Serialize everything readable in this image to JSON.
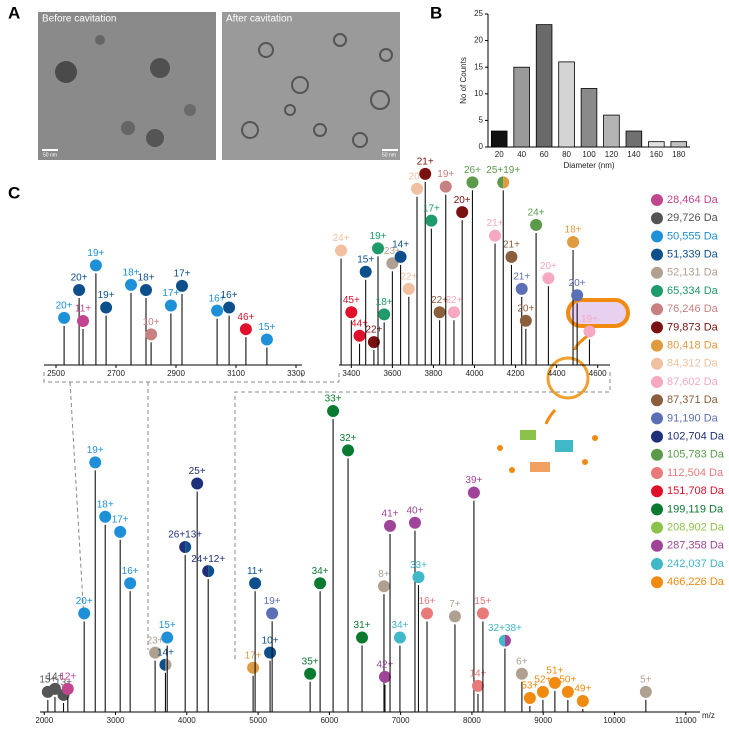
{
  "panel_labels": [
    "A",
    "B",
    "C"
  ],
  "micrographs": [
    {
      "caption": "Before cavitation",
      "scale_bar": "50 nm"
    },
    {
      "caption": "After cavitation",
      "scale_bar": "50 nm"
    }
  ],
  "legend": [
    {
      "label": "28,464 Da",
      "color": "#c2458f"
    },
    {
      "label": "29,726 Da",
      "color": "#555555"
    },
    {
      "label": "50,555 Da",
      "color": "#1e90d8"
    },
    {
      "label": "51,339 Da",
      "color": "#0d4f8b"
    },
    {
      "label": "52,131 Da",
      "color": "#b0a090"
    },
    {
      "label": "65,334 Da",
      "color": "#1f9a6a"
    },
    {
      "label": "76,246 Da",
      "color": "#c98080"
    },
    {
      "label": "79,873 Da",
      "color": "#7a1010"
    },
    {
      "label": "80,418 Da",
      "color": "#e09a40"
    },
    {
      "label": "84,312 Da",
      "color": "#f0c0a0"
    },
    {
      "label": "87,602 Da",
      "color": "#f5a8c0"
    },
    {
      "label": "87,371 Da",
      "color": "#8b5e3c"
    },
    {
      "label": "91,190 Da",
      "color": "#5a6fb5"
    },
    {
      "label": "102,704 Da",
      "color": "#1f2f7a"
    },
    {
      "label": "105,783 Da",
      "color": "#5a9a4a"
    },
    {
      "label": "112,504 Da",
      "color": "#e87a7a"
    },
    {
      "label": "151,708 Da",
      "color": "#e0102a"
    },
    {
      "label": "199,119 Da",
      "color": "#0a7a30"
    },
    {
      "label": "208,902 Da",
      "color": "#8bc34a"
    },
    {
      "label": "287,358 Da",
      "color": "#a0449a"
    },
    {
      "label": "242,037 Da",
      "color": "#40b8c8"
    },
    {
      "label": "466,226 Da",
      "color": "#f08a10"
    }
  ],
  "chart_data": [
    {
      "type": "bar",
      "xlabel": "Diameter (nm)",
      "ylabel": "No of Counts",
      "categories": [
        "20",
        "40",
        "60",
        "80",
        "100",
        "120",
        "140",
        "160",
        "180"
      ],
      "values": [
        3,
        15,
        23,
        16,
        11,
        6,
        3,
        1,
        1
      ],
      "colors": [
        "#111111",
        "#9a9a9a",
        "#6a6a6a",
        "#d4d4d4",
        "#8a8a8a",
        "#b4b4b4",
        "#707070",
        "#e2e2e2",
        "#c2c2c2"
      ],
      "ylim": [
        0,
        25
      ],
      "yticks": [
        0,
        5,
        10,
        15,
        20,
        25
      ]
    },
    {
      "type": "spectrum",
      "xlabel": "m/z",
      "xlim": [
        1940,
        11200
      ],
      "ylim": [
        0,
        100
      ],
      "xticks": [
        2000,
        3000,
        4000,
        5000,
        6000,
        7000,
        8000,
        9000,
        10000,
        11000
      ],
      "peaks": [
        {
          "label": "15+",
          "x": 2050,
          "y": 4,
          "series": [
            1
          ]
        },
        {
          "label": "14+",
          "x": 2150,
          "y": 5,
          "series": [
            1
          ]
        },
        {
          "label": "13+",
          "x": 2270,
          "y": 3,
          "series": [
            1
          ]
        },
        {
          "label": "12+",
          "x": 2330,
          "y": 5,
          "series": [
            0
          ]
        },
        {
          "label": "20+",
          "x": 2560,
          "y": 30,
          "series": [
            2
          ]
        },
        {
          "label": "19+",
          "x": 2715,
          "y": 80,
          "series": [
            2
          ]
        },
        {
          "label": "18+",
          "x": 2855,
          "y": 62,
          "series": [
            2
          ]
        },
        {
          "label": "17+",
          "x": 3065,
          "y": 57,
          "series": [
            2
          ]
        },
        {
          "label": "16+",
          "x": 3205,
          "y": 40,
          "series": [
            2
          ]
        },
        {
          "label": "23+",
          "x": 3555,
          "y": 17,
          "series": [
            4
          ]
        },
        {
          "label": "14+",
          "x": 3700,
          "y": 13,
          "series": [
            3,
            4
          ]
        },
        {
          "label": "15+",
          "x": 3725,
          "y": 22,
          "series": [
            2
          ]
        },
        {
          "label": "26+13+",
          "x": 3977,
          "y": 52,
          "series": [
            13,
            3
          ]
        },
        {
          "label": "25+",
          "x": 4145,
          "y": 73,
          "series": [
            13
          ]
        },
        {
          "label": "24+12+",
          "x": 4300,
          "y": 44,
          "series": [
            13,
            3
          ]
        },
        {
          "label": "17+",
          "x": 4930,
          "y": 12,
          "series": [
            8
          ]
        },
        {
          "label": "11+",
          "x": 4958,
          "y": 40,
          "series": [
            3
          ]
        },
        {
          "label": "10+",
          "x": 5168,
          "y": 17,
          "series": [
            3
          ]
        },
        {
          "label": "19+",
          "x": 5197,
          "y": 30,
          "series": [
            12
          ]
        },
        {
          "label": "35+",
          "x": 5730,
          "y": 10,
          "series": [
            17
          ]
        },
        {
          "label": "34+",
          "x": 5870,
          "y": 40,
          "series": [
            17
          ]
        },
        {
          "label": "33+",
          "x": 6052,
          "y": 97,
          "series": [
            17
          ]
        },
        {
          "label": "32+",
          "x": 6262,
          "y": 84,
          "series": [
            17
          ]
        },
        {
          "label": "31+",
          "x": 6458,
          "y": 22,
          "series": [
            17
          ]
        },
        {
          "label": "8+",
          "x": 6766,
          "y": 39,
          "series": [
            4
          ]
        },
        {
          "label": "42+",
          "x": 6780,
          "y": 9,
          "series": [
            19
          ]
        },
        {
          "label": "41+",
          "x": 6851,
          "y": 59,
          "series": [
            19
          ]
        },
        {
          "label": "34+",
          "x": 6990,
          "y": 22,
          "series": [
            20
          ]
        },
        {
          "label": "40+",
          "x": 7201,
          "y": 60,
          "series": [
            19
          ]
        },
        {
          "label": "33+",
          "x": 7250,
          "y": 42,
          "series": [
            20
          ]
        },
        {
          "label": "16+",
          "x": 7370,
          "y": 30,
          "series": [
            15
          ]
        },
        {
          "label": "7+",
          "x": 7762,
          "y": 29,
          "series": [
            4
          ]
        },
        {
          "label": "39+",
          "x": 8028,
          "y": 70,
          "series": [
            19
          ]
        },
        {
          "label": "14+",
          "x": 8085,
          "y": 6,
          "series": [
            15
          ]
        },
        {
          "label": "15+",
          "x": 8154,
          "y": 30,
          "series": [
            15
          ]
        },
        {
          "label": "32+38+",
          "x": 8463,
          "y": 21,
          "series": [
            20,
            19
          ]
        },
        {
          "label": "6+",
          "x": 8701,
          "y": 10,
          "series": [
            4
          ]
        },
        {
          "label": "53+",
          "x": 8813,
          "y": 2,
          "series": [
            21
          ]
        },
        {
          "label": "52+",
          "x": 8996,
          "y": 4,
          "series": [
            21
          ]
        },
        {
          "label": "51+",
          "x": 9164,
          "y": 7,
          "series": [
            21
          ]
        },
        {
          "label": "50+",
          "x": 9346,
          "y": 4,
          "series": [
            21
          ]
        },
        {
          "label": "49+",
          "x": 9556,
          "y": 1,
          "series": [
            21
          ]
        },
        {
          "label": "5+",
          "x": 10440,
          "y": 4,
          "series": [
            4
          ]
        }
      ]
    },
    {
      "type": "spectrum",
      "xlim": [
        2460,
        3320
      ],
      "ylim": [
        0,
        100
      ],
      "xticks": [
        2500,
        2700,
        2900,
        3100,
        3300
      ],
      "peaks": [
        {
          "label": "20+",
          "x": 2527,
          "y": 38,
          "series": [
            2
          ]
        },
        {
          "label": "20+",
          "x": 2577,
          "y": 65,
          "series": [
            3
          ]
        },
        {
          "label": "11+",
          "x": 2590,
          "y": 35,
          "series": [
            0
          ]
        },
        {
          "label": "19+",
          "x": 2633,
          "y": 89,
          "series": [
            2
          ]
        },
        {
          "label": "19+",
          "x": 2667,
          "y": 48,
          "series": [
            3
          ]
        },
        {
          "label": "18+",
          "x": 2750,
          "y": 70,
          "series": [
            2
          ]
        },
        {
          "label": "18+",
          "x": 2800,
          "y": 65,
          "series": [
            3
          ]
        },
        {
          "label": "10+",
          "x": 2817,
          "y": 22,
          "series": [
            6
          ]
        },
        {
          "label": "17+",
          "x": 2883,
          "y": 50,
          "series": [
            2
          ]
        },
        {
          "label": "17+",
          "x": 2920,
          "y": 69,
          "series": [
            3
          ]
        },
        {
          "label": "16+",
          "x": 3037,
          "y": 45,
          "series": [
            2
          ]
        },
        {
          "label": "16+",
          "x": 3077,
          "y": 48,
          "series": [
            3
          ]
        },
        {
          "label": "46+",
          "x": 3133,
          "y": 27,
          "series": [
            16
          ]
        },
        {
          "label": "15+",
          "x": 3203,
          "y": 17,
          "series": [
            2
          ]
        }
      ]
    },
    {
      "type": "spectrum",
      "xlim": [
        3340,
        4660
      ],
      "ylim": [
        0,
        100
      ],
      "xticks": [
        3400,
        3600,
        3800,
        4000,
        4200,
        4400,
        4600
      ],
      "peaks": [
        {
          "label": "24+",
          "x": 3350,
          "y": 50,
          "series": [
            9
          ]
        },
        {
          "label": "45+",
          "x": 3400,
          "y": 21,
          "series": [
            16
          ]
        },
        {
          "label": "44+",
          "x": 3440,
          "y": 10,
          "series": [
            16
          ]
        },
        {
          "label": "15+",
          "x": 3470,
          "y": 40,
          "series": [
            3
          ]
        },
        {
          "label": "22+",
          "x": 3510,
          "y": 7,
          "series": [
            7
          ]
        },
        {
          "label": "19+",
          "x": 3530,
          "y": 51,
          "series": [
            5
          ]
        },
        {
          "label": "18+",
          "x": 3560,
          "y": 20,
          "series": [
            5
          ]
        },
        {
          "label": "23+",
          "x": 3600,
          "y": 44,
          "series": [
            4
          ]
        },
        {
          "label": "14+",
          "x": 3640,
          "y": 47,
          "series": [
            3
          ]
        },
        {
          "label": "22+",
          "x": 3680,
          "y": 32,
          "series": [
            9
          ]
        },
        {
          "label": "20+",
          "x": 3720,
          "y": 79,
          "series": [
            9
          ]
        },
        {
          "label": "21+",
          "x": 3760,
          "y": 86,
          "series": [
            7
          ]
        },
        {
          "label": "17+",
          "x": 3790,
          "y": 64,
          "series": [
            5
          ]
        },
        {
          "label": "22+",
          "x": 3830,
          "y": 21,
          "series": [
            11
          ]
        },
        {
          "label": "19+",
          "x": 3860,
          "y": 80,
          "series": [
            6
          ]
        },
        {
          "label": "22+",
          "x": 3900,
          "y": 21,
          "series": [
            10
          ]
        },
        {
          "label": "20+",
          "x": 3940,
          "y": 68,
          "series": [
            7
          ]
        },
        {
          "label": "26+",
          "x": 3990,
          "y": 82,
          "series": [
            14
          ]
        },
        {
          "label": "21+",
          "x": 4100,
          "y": 57,
          "series": [
            10
          ]
        },
        {
          "label": "25+19+",
          "x": 4140,
          "y": 82,
          "series": [
            14,
            8
          ]
        },
        {
          "label": "21+",
          "x": 4180,
          "y": 47,
          "series": [
            11
          ]
        },
        {
          "label": "21+",
          "x": 4230,
          "y": 32,
          "series": [
            12
          ]
        },
        {
          "label": "20+",
          "x": 4250,
          "y": 17,
          "series": [
            11
          ]
        },
        {
          "label": "24+",
          "x": 4300,
          "y": 62,
          "series": [
            14
          ]
        },
        {
          "label": "20+",
          "x": 4360,
          "y": 37,
          "series": [
            10
          ]
        },
        {
          "label": "18+",
          "x": 4480,
          "y": 54,
          "series": [
            8
          ]
        },
        {
          "label": "20+",
          "x": 4500,
          "y": 29,
          "series": [
            12
          ]
        },
        {
          "label": "19+",
          "x": 4560,
          "y": 12,
          "series": [
            10
          ]
        }
      ]
    }
  ]
}
